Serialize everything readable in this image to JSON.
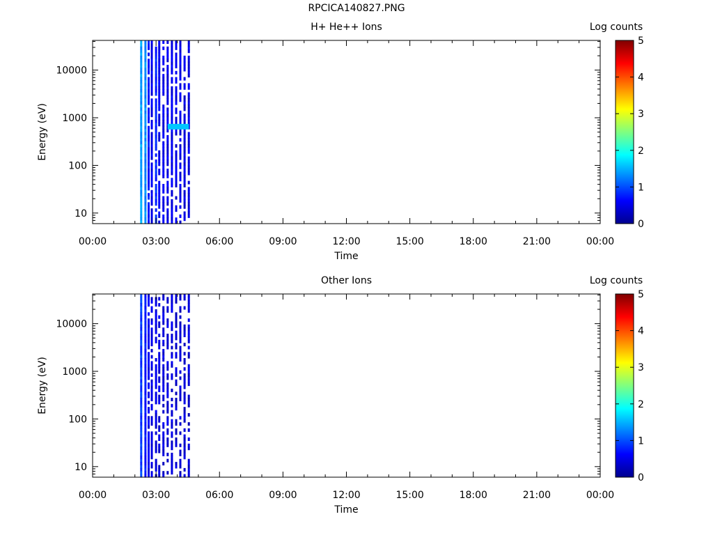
{
  "page": {
    "title": "RPCICA140827.PNG"
  },
  "chart_data": [
    {
      "type": "heatmap",
      "title": "H+ He++ Ions",
      "xlabel": "Time",
      "ylabel": "Energy (eV)",
      "x_ticks": [
        "00:00",
        "03:00",
        "06:00",
        "09:00",
        "12:00",
        "15:00",
        "18:00",
        "21:00",
        "00:00"
      ],
      "x_range_hours": [
        0,
        24
      ],
      "y_scale": "log",
      "y_ticks": [
        "10",
        "100",
        "1000",
        "10000"
      ],
      "y_range_eV": [
        6,
        42000
      ],
      "colorbar": {
        "label": "Log counts",
        "ticks": [
          "0",
          "1",
          "2",
          "3",
          "4",
          "5"
        ],
        "range": [
          0,
          5
        ],
        "colormap": "jet"
      },
      "data_time_range_hours": [
        2.25,
        4.6
      ],
      "columns": [
        {
          "t": 2.25,
          "level": 1.4
        },
        {
          "t": 2.45,
          "level": 1.3
        },
        {
          "t": 2.6,
          "level": 0.7
        },
        {
          "t": 2.75,
          "level": 0.55
        },
        {
          "t": 2.95,
          "level": 0.8
        },
        {
          "t": 3.1,
          "level": 0.55
        },
        {
          "t": 3.3,
          "level": 0.55
        },
        {
          "t": 3.5,
          "level": 0.5
        },
        {
          "t": 3.7,
          "level": 0.55
        },
        {
          "t": 3.9,
          "level": 0.5
        },
        {
          "t": 4.1,
          "level": 0.5
        },
        {
          "t": 4.3,
          "level": 0.45
        },
        {
          "t": 4.5,
          "level": 0.5
        }
      ],
      "features": [
        {
          "t_start": 3.55,
          "t_end": 4.55,
          "energy_eV": 650,
          "level": 1.6
        }
      ]
    },
    {
      "type": "heatmap",
      "title": "Other Ions",
      "xlabel": "Time",
      "ylabel": "Energy (eV)",
      "x_ticks": [
        "00:00",
        "03:00",
        "06:00",
        "09:00",
        "12:00",
        "15:00",
        "18:00",
        "21:00",
        "00:00"
      ],
      "x_range_hours": [
        0,
        24
      ],
      "y_scale": "log",
      "y_ticks": [
        "10",
        "100",
        "1000",
        "10000"
      ],
      "y_range_eV": [
        6,
        42000
      ],
      "colorbar": {
        "label": "Log counts",
        "ticks": [
          "0",
          "1",
          "2",
          "3",
          "4",
          "5"
        ],
        "range": [
          0,
          5
        ],
        "colormap": "jet"
      },
      "data_time_range_hours": [
        2.25,
        4.6
      ],
      "columns": [
        {
          "t": 2.25,
          "level": 0.9
        },
        {
          "t": 2.45,
          "level": 0.7
        },
        {
          "t": 2.6,
          "level": 0.55
        },
        {
          "t": 2.75,
          "level": 0.5
        },
        {
          "t": 2.95,
          "level": 0.5
        },
        {
          "t": 3.1,
          "level": 0.45
        },
        {
          "t": 3.3,
          "level": 0.45
        },
        {
          "t": 3.5,
          "level": 0.45
        },
        {
          "t": 3.7,
          "level": 0.45
        },
        {
          "t": 3.9,
          "level": 0.4
        },
        {
          "t": 4.1,
          "level": 0.4
        },
        {
          "t": 4.3,
          "level": 0.4
        },
        {
          "t": 4.5,
          "level": 0.4
        }
      ],
      "features": []
    }
  ]
}
